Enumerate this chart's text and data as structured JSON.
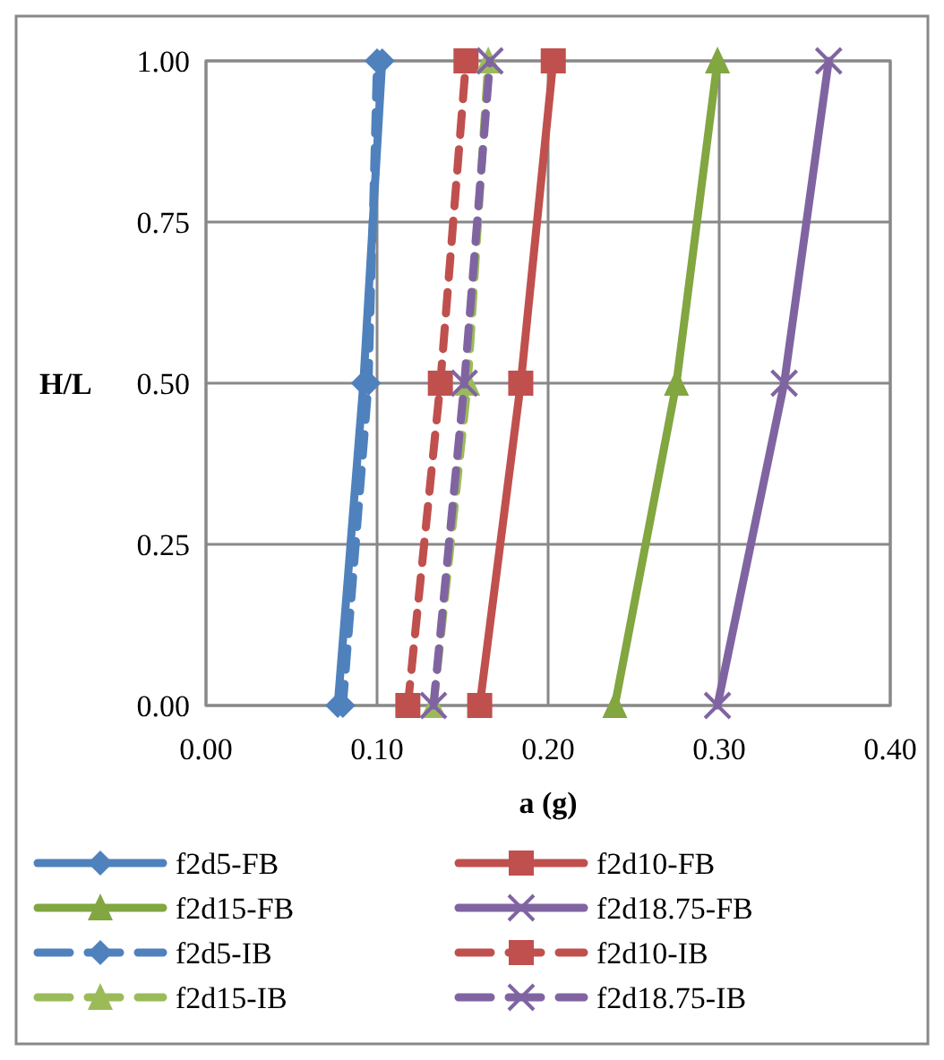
{
  "chart_data": {
    "type": "line",
    "xlabel": "a (g)",
    "ylabel": "H/L",
    "xlim": [
      0,
      0.4
    ],
    "xticks": [
      {
        "value": 0,
        "label": "0.00"
      },
      {
        "value": 0.1,
        "label": "0.10"
      },
      {
        "value": 0.2,
        "label": "0.20"
      },
      {
        "value": 0.3,
        "label": "0.30"
      },
      {
        "value": 0.4,
        "label": "0.40"
      }
    ],
    "ylim": [
      0,
      1
    ],
    "yticks": [
      {
        "value": 0,
        "label": "0.00"
      },
      {
        "value": 0.25,
        "label": "0.25"
      },
      {
        "value": 0.5,
        "label": "0.50"
      },
      {
        "value": 0.75,
        "label": "0.75"
      },
      {
        "value": 1,
        "label": "1.00"
      }
    ],
    "grid": true,
    "legend": "bottom",
    "series": [
      {
        "name": "f2d5-FB",
        "color": "#4f81bd",
        "marker": "diamond",
        "line_style": "solid",
        "x": [
          0.077,
          0.092,
          0.103
        ],
        "values": [
          0,
          0.5,
          1
        ]
      },
      {
        "name": "f2d10-FB",
        "color": "#c0504d",
        "marker": "square",
        "line_style": "solid",
        "x": [
          0.16,
          0.184,
          0.203
        ],
        "values": [
          0,
          0.5,
          1
        ]
      },
      {
        "name": "f2d15-FB",
        "color": "#82a640",
        "marker": "triangle",
        "line_style": "solid",
        "x": [
          0.239,
          0.275,
          0.299
        ],
        "values": [
          0,
          0.5,
          1
        ]
      },
      {
        "name": "f2d18.75-FB",
        "color": "#8064a2",
        "marker": "cross",
        "line_style": "solid",
        "x": [
          0.299,
          0.338,
          0.364
        ],
        "values": [
          0,
          0.5,
          1
        ]
      },
      {
        "name": "f2d5-IB",
        "color": "#4f81bd",
        "marker": "diamond",
        "line_style": "dashed",
        "x": [
          0.08,
          0.095,
          0.1
        ],
        "values": [
          0,
          0.5,
          1
        ]
      },
      {
        "name": "f2d10-IB",
        "color": "#c0504d",
        "marker": "square",
        "line_style": "dashed",
        "x": [
          0.118,
          0.137,
          0.152
        ],
        "values": [
          0,
          0.5,
          1
        ]
      },
      {
        "name": "f2d15-IB",
        "color": "#9bbb59",
        "marker": "triangle",
        "line_style": "dashed",
        "x": [
          0.133,
          0.153,
          0.165
        ],
        "values": [
          0,
          0.5,
          1
        ]
      },
      {
        "name": "f2d18.75-IB",
        "color": "#8064a2",
        "marker": "cross",
        "line_style": "dashed",
        "x": [
          0.133,
          0.151,
          0.166
        ],
        "values": [
          0,
          0.5,
          1
        ]
      }
    ]
  }
}
